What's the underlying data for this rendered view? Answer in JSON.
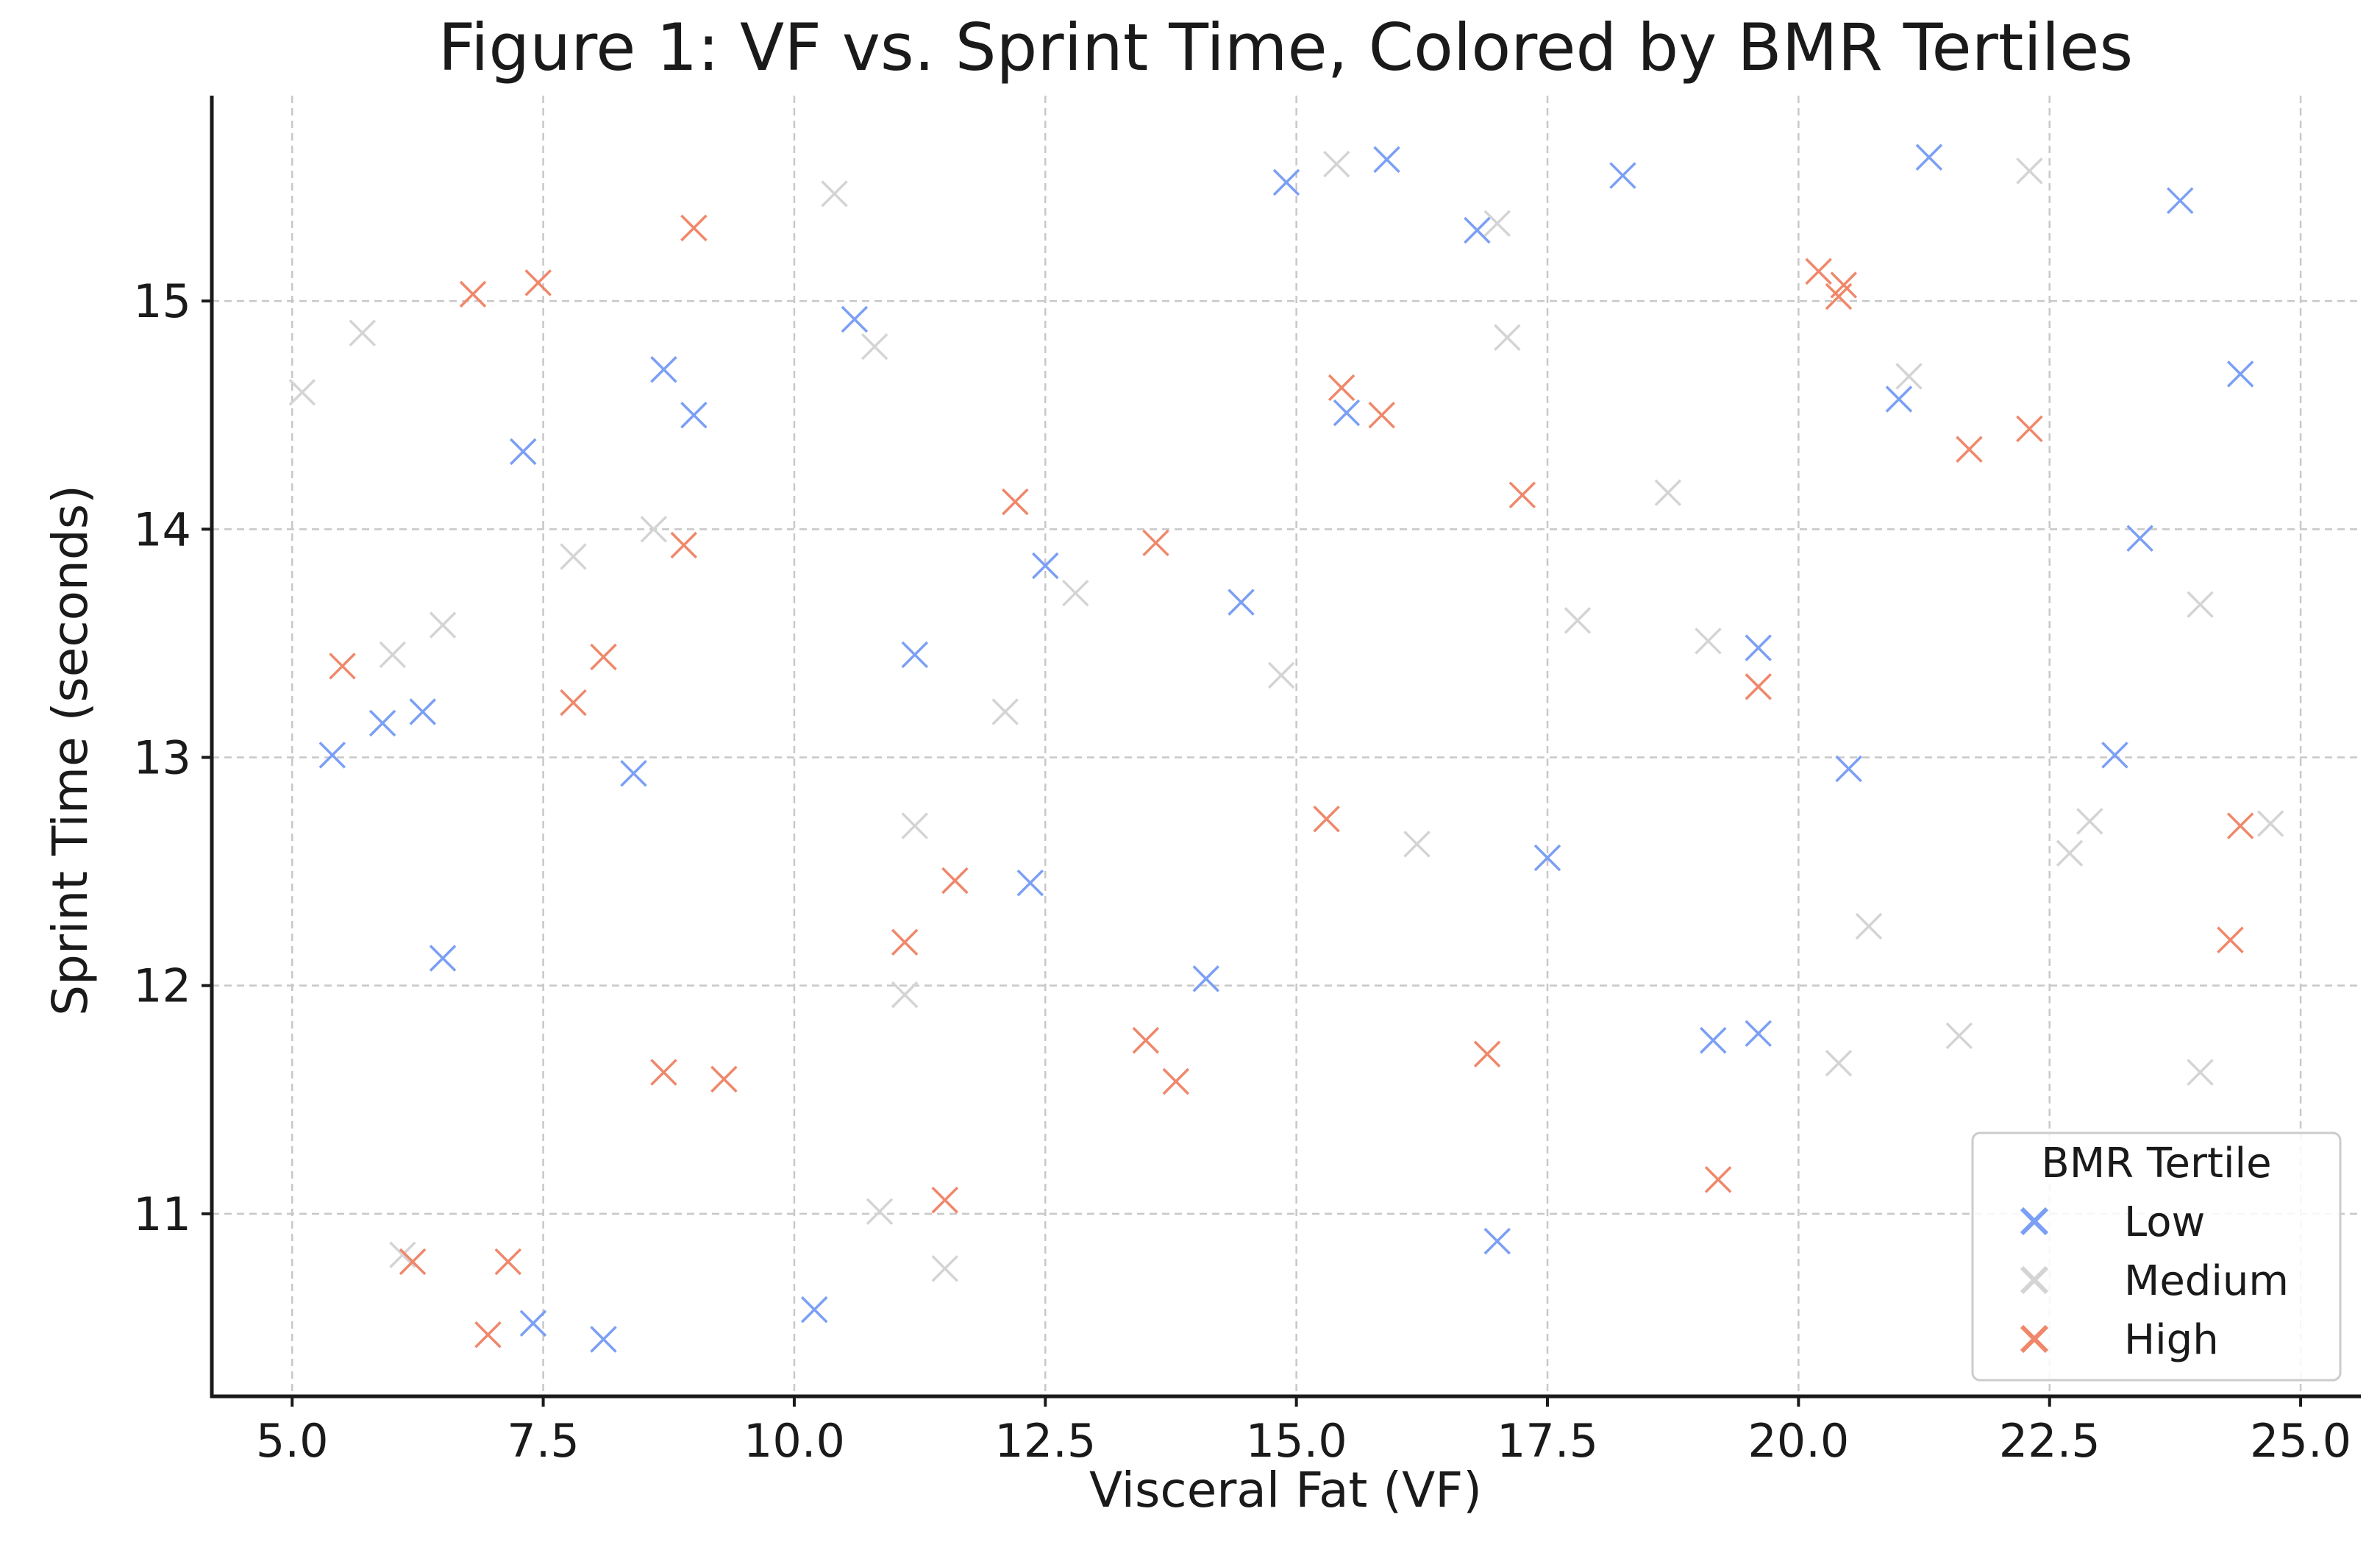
{
  "chart_data": {
    "type": "scatter",
    "title": "Figure 1: VF vs. Sprint Time, Colored by BMR Tertiles",
    "xlabel": "Visceral Fat (VF)",
    "ylabel": "Sprint Time (seconds)",
    "xlim": [
      4.2,
      25.6
    ],
    "ylim": [
      10.2,
      15.9
    ],
    "xticks": [
      5.0,
      7.5,
      10.0,
      12.5,
      15.0,
      17.5,
      20.0,
      22.5,
      25.0
    ],
    "xtick_labels": [
      "5.0",
      "7.5",
      "10.0",
      "12.5",
      "15.0",
      "17.5",
      "20.0",
      "22.5",
      "25.0"
    ],
    "yticks": [
      11,
      12,
      13,
      14,
      15
    ],
    "ytick_labels": [
      "11",
      "12",
      "13",
      "14",
      "15"
    ],
    "grid": true,
    "marker": "x",
    "legend": {
      "title": "BMR Tertile",
      "position": "lower-right"
    },
    "series": [
      {
        "name": "Low",
        "color": "#7b9ff5",
        "points": [
          [
            5.4,
            13.01
          ],
          [
            5.9,
            13.15
          ],
          [
            6.3,
            13.2
          ],
          [
            6.5,
            12.12
          ],
          [
            7.3,
            14.34
          ],
          [
            7.4,
            10.52
          ],
          [
            8.1,
            10.45
          ],
          [
            8.4,
            12.93
          ],
          [
            8.7,
            14.7
          ],
          [
            9.0,
            14.5
          ],
          [
            10.2,
            10.58
          ],
          [
            10.6,
            14.92
          ],
          [
            11.2,
            13.45
          ],
          [
            12.35,
            12.45
          ],
          [
            12.5,
            13.84
          ],
          [
            14.1,
            12.03
          ],
          [
            14.45,
            13.68
          ],
          [
            14.9,
            15.52
          ],
          [
            15.5,
            14.51
          ],
          [
            15.9,
            15.62
          ],
          [
            16.8,
            15.31
          ],
          [
            17.0,
            10.88
          ],
          [
            17.5,
            12.56
          ],
          [
            18.25,
            15.55
          ],
          [
            19.15,
            11.76
          ],
          [
            19.6,
            13.48
          ],
          [
            19.6,
            11.79
          ],
          [
            20.5,
            12.95
          ],
          [
            21.0,
            14.57
          ],
          [
            21.3,
            15.63
          ],
          [
            23.15,
            13.01
          ],
          [
            23.4,
            13.96
          ],
          [
            23.8,
            15.44
          ],
          [
            24.4,
            14.68
          ]
        ]
      },
      {
        "name": "Medium",
        "color": "#d4d4d4",
        "points": [
          [
            5.1,
            14.6
          ],
          [
            5.7,
            14.86
          ],
          [
            6.0,
            13.45
          ],
          [
            6.5,
            13.58
          ],
          [
            6.1,
            10.82
          ],
          [
            7.8,
            13.88
          ],
          [
            8.6,
            14.0
          ],
          [
            10.4,
            15.47
          ],
          [
            10.8,
            14.8
          ],
          [
            10.85,
            11.01
          ],
          [
            11.1,
            11.96
          ],
          [
            11.2,
            12.7
          ],
          [
            11.5,
            10.76
          ],
          [
            12.1,
            13.2
          ],
          [
            12.8,
            13.72
          ],
          [
            14.85,
            13.36
          ],
          [
            15.4,
            15.6
          ],
          [
            16.2,
            12.62
          ],
          [
            17.0,
            15.34
          ],
          [
            17.1,
            14.84
          ],
          [
            17.8,
            13.6
          ],
          [
            18.7,
            14.16
          ],
          [
            19.1,
            13.51
          ],
          [
            20.4,
            11.66
          ],
          [
            20.7,
            12.26
          ],
          [
            21.1,
            14.67
          ],
          [
            21.6,
            11.78
          ],
          [
            22.3,
            15.57
          ],
          [
            22.7,
            12.58
          ],
          [
            22.9,
            12.72
          ],
          [
            24.0,
            13.67
          ],
          [
            24.0,
            11.62
          ],
          [
            24.7,
            12.71
          ]
        ]
      },
      {
        "name": "High",
        "color": "#f0876a",
        "points": [
          [
            5.5,
            13.4
          ],
          [
            6.2,
            10.79
          ],
          [
            6.8,
            15.03
          ],
          [
            6.95,
            10.47
          ],
          [
            7.15,
            10.79
          ],
          [
            7.45,
            15.08
          ],
          [
            7.8,
            13.24
          ],
          [
            8.1,
            13.44
          ],
          [
            8.7,
            11.62
          ],
          [
            8.9,
            13.93
          ],
          [
            9.0,
            15.32
          ],
          [
            9.3,
            11.59
          ],
          [
            11.1,
            12.19
          ],
          [
            11.5,
            11.06
          ],
          [
            11.6,
            12.46
          ],
          [
            12.2,
            14.12
          ],
          [
            13.5,
            11.76
          ],
          [
            13.6,
            13.94
          ],
          [
            13.8,
            11.58
          ],
          [
            15.3,
            12.73
          ],
          [
            15.45,
            14.62
          ],
          [
            15.85,
            14.5
          ],
          [
            16.9,
            11.7
          ],
          [
            17.25,
            14.15
          ],
          [
            19.2,
            11.15
          ],
          [
            19.6,
            13.31
          ],
          [
            20.2,
            15.13
          ],
          [
            20.45,
            15.07
          ],
          [
            20.4,
            15.02
          ],
          [
            21.7,
            14.35
          ],
          [
            22.3,
            14.44
          ],
          [
            24.3,
            12.2
          ],
          [
            24.4,
            12.7
          ]
        ]
      }
    ]
  }
}
